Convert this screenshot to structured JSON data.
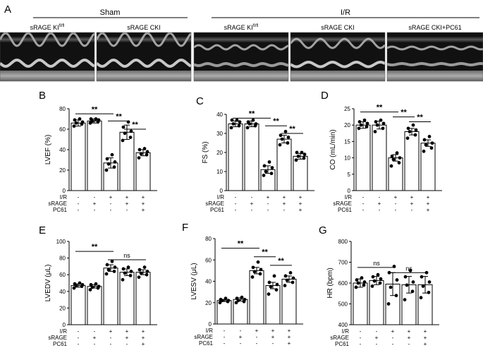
{
  "panelA": {
    "letter": "A",
    "sham_label": "Sham",
    "ir_label": "I/R",
    "images": [
      {
        "label": "sRAGE KI",
        "sup": "fl/fl"
      },
      {
        "label": "sRAGE CKI",
        "sup": ""
      },
      {
        "label": "sRAGE KI",
        "sup": "fl/fl"
      },
      {
        "label": "sRAGE CKI",
        "sup": ""
      },
      {
        "label": "sRAGE CKI+PC61",
        "sup": ""
      }
    ]
  },
  "treatments": {
    "rows": [
      "I/R",
      "sRAGE",
      "PC61"
    ],
    "signs": [
      [
        "-",
        "-",
        "+",
        "+",
        "+"
      ],
      [
        "-",
        "+",
        "-",
        "+",
        "+"
      ],
      [
        "-",
        "-",
        "-",
        "-",
        "+"
      ]
    ]
  },
  "chart_data": [
    {
      "id": "B",
      "letter": "B",
      "type": "bar",
      "ylabel": "LVEF (%)",
      "ylim": [
        0,
        80
      ],
      "ticks": [
        0,
        20,
        40,
        60,
        80
      ],
      "values": [
        66,
        68,
        27,
        57,
        37
      ],
      "errors": [
        3,
        2,
        5,
        7,
        3
      ],
      "points": [
        [
          63,
          65,
          66,
          67,
          69,
          70
        ],
        [
          66,
          67,
          68,
          69,
          70,
          70
        ],
        [
          20,
          23,
          26,
          28,
          31,
          35
        ],
        [
          49,
          52,
          56,
          58,
          62,
          67
        ],
        [
          32,
          35,
          36,
          38,
          40,
          41
        ]
      ],
      "sig": [
        {
          "from": 0,
          "to": 2,
          "y": 75,
          "label": "**"
        },
        {
          "from": 2,
          "to": 3,
          "y": 68,
          "label": "**"
        },
        {
          "from": 3,
          "to": 4,
          "y": 60,
          "label": "**"
        }
      ]
    },
    {
      "id": "C",
      "letter": "C",
      "type": "bar",
      "ylabel": "FS (%)",
      "ylim": [
        0,
        40
      ],
      "ticks": [
        0,
        10,
        20,
        30,
        40
      ],
      "values": [
        35,
        35,
        11,
        27,
        18
      ],
      "errors": [
        1.5,
        1.5,
        2,
        2,
        1.5
      ],
      "points": [
        [
          33,
          34,
          35,
          36,
          37,
          37
        ],
        [
          33,
          34,
          35,
          35,
          36,
          37
        ],
        [
          8,
          9,
          10,
          12,
          13,
          15
        ],
        [
          24,
          25,
          27,
          28,
          29,
          31
        ],
        [
          16,
          17,
          18,
          19,
          20,
          20
        ]
      ],
      "sig": [
        {
          "from": 0,
          "to": 2,
          "y": 38,
          "label": "**"
        },
        {
          "from": 2,
          "to": 3,
          "y": 34,
          "label": "**"
        },
        {
          "from": 3,
          "to": 4,
          "y": 30,
          "label": "**"
        }
      ]
    },
    {
      "id": "D",
      "letter": "D",
      "type": "bar",
      "ylabel": "CO (mL/min)",
      "ylim": [
        0,
        25
      ],
      "ticks": [
        0,
        5,
        10,
        15,
        20,
        25
      ],
      "values": [
        20,
        20,
        10,
        18,
        14.5
      ],
      "errors": [
        1,
        1.2,
        1,
        1,
        1
      ],
      "points": [
        [
          19,
          19.5,
          20,
          20.5,
          21,
          21.5
        ],
        [
          18,
          19,
          20,
          20.5,
          21,
          21.5
        ],
        [
          7.5,
          8.5,
          9.5,
          10,
          10.5,
          11.5
        ],
        [
          16,
          17,
          18,
          18.5,
          19,
          20
        ],
        [
          12,
          13,
          14,
          14.5,
          15.5,
          16.5
        ]
      ],
      "sig": [
        {
          "from": 0,
          "to": 2,
          "y": 24,
          "label": "**"
        },
        {
          "from": 2,
          "to": 3,
          "y": 22.5,
          "label": "**"
        },
        {
          "from": 3,
          "to": 4,
          "y": 21,
          "label": "**"
        }
      ]
    },
    {
      "id": "E",
      "letter": "E",
      "type": "bar",
      "ylabel": "LVEDV (μL)",
      "ylim": [
        0,
        100
      ],
      "ticks": [
        0,
        20,
        40,
        60,
        80,
        100
      ],
      "values": [
        47,
        46,
        68,
        63,
        63
      ],
      "errors": [
        2,
        2,
        4,
        4,
        3
      ],
      "points": [
        [
          44,
          46,
          47,
          48,
          49,
          50
        ],
        [
          42,
          44,
          45,
          46,
          48,
          49
        ],
        [
          61,
          64,
          66,
          69,
          72,
          76
        ],
        [
          54,
          59,
          62,
          64,
          67,
          69
        ],
        [
          57,
          60,
          62,
          64,
          66,
          69
        ]
      ],
      "sig": [
        {
          "from": 0,
          "to": 2,
          "y": 88,
          "label": "**"
        },
        {
          "from": 2,
          "to": 4,
          "y": 78,
          "label": "ns"
        }
      ]
    },
    {
      "id": "F",
      "letter": "F",
      "type": "bar",
      "ylabel": "LVESV (μL)",
      "ylim": [
        0,
        80
      ],
      "ticks": [
        0,
        20,
        40,
        60,
        80
      ],
      "values": [
        22,
        23,
        50,
        36,
        42
      ],
      "errors": [
        1,
        1.5,
        3,
        3,
        3
      ],
      "points": [
        [
          20,
          21,
          22,
          22,
          23,
          24
        ],
        [
          20,
          21,
          22,
          23,
          24,
          25
        ],
        [
          44,
          47,
          49,
          51,
          53,
          58
        ],
        [
          28,
          32,
          35,
          37,
          39,
          45
        ],
        [
          36,
          39,
          41,
          43,
          45,
          48
        ]
      ],
      "sig": [
        {
          "from": 0,
          "to": 2,
          "y": 71,
          "label": "**"
        },
        {
          "from": 2,
          "to": 3,
          "y": 63,
          "label": "**"
        },
        {
          "from": 3,
          "to": 4,
          "y": 55,
          "label": "**"
        }
      ]
    },
    {
      "id": "G",
      "letter": "G",
      "type": "bar",
      "ylabel": "HR (bpm)",
      "ylim": [
        400,
        800
      ],
      "ticks": [
        400,
        500,
        600,
        700,
        800
      ],
      "values": [
        600,
        612,
        595,
        592,
        592
      ],
      "errors": [
        20,
        20,
        55,
        40,
        40
      ],
      "points": [
        [
          580,
          590,
          600,
          605,
          615,
          625
        ],
        [
          585,
          600,
          610,
          620,
          630,
          640
        ],
        [
          500,
          540,
          580,
          615,
          650,
          680
        ],
        [
          520,
          560,
          590,
          605,
          630,
          660
        ],
        [
          530,
          555,
          585,
          605,
          630,
          650
        ]
      ],
      "sig": [
        {
          "from": 0,
          "to": 2,
          "y": 675,
          "label": "ns"
        },
        {
          "from": 2,
          "to": 4,
          "y": 650,
          "label": "ns"
        }
      ]
    }
  ]
}
